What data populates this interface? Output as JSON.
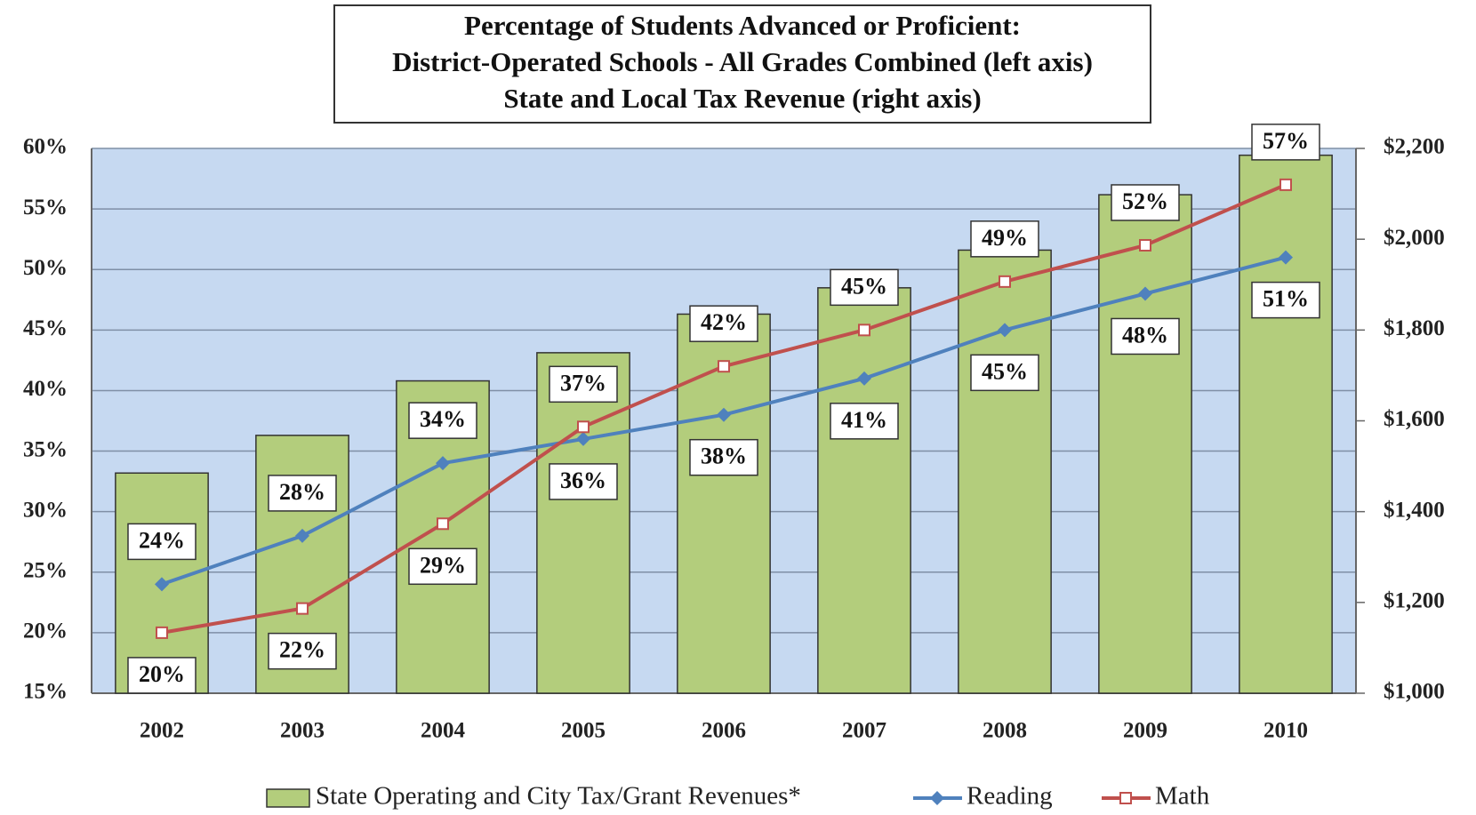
{
  "chart_data": {
    "type": "bar-line",
    "title": [
      "Percentage of Students Advanced or Proficient:",
      "District-Operated Schools - All Grades Combined (left axis)",
      "State and Local Tax Revenue (right axis)"
    ],
    "categories": [
      "2002",
      "2003",
      "2004",
      "2005",
      "2006",
      "2007",
      "2008",
      "2009",
      "2010"
    ],
    "series": [
      {
        "name": "State Operating and City Tax/Grant Revenues*",
        "type": "bar",
        "axis": "y2",
        "color": "#b3cd7c",
        "values": [
          1485,
          1568,
          1688,
          1750,
          1835,
          1893,
          1976,
          2098,
          2185
        ]
      },
      {
        "name": "Reading",
        "type": "line",
        "color": "#4f81bd",
        "values": [
          24,
          28,
          34,
          36,
          38,
          41,
          45,
          48,
          51
        ],
        "value_labels": [
          "24%",
          "28%",
          "34%",
          "36%",
          "38%",
          "41%",
          "45%",
          "48%",
          "51%"
        ]
      },
      {
        "name": "Math",
        "type": "line",
        "color": "#c0504d",
        "values": [
          20,
          22,
          29,
          37,
          42,
          45,
          49,
          52,
          57
        ],
        "value_labels": [
          "20%",
          "22%",
          "29%",
          "37%",
          "42%",
          "45%",
          "49%",
          "52%",
          "57%"
        ]
      }
    ],
    "ylim": [
      15,
      60
    ],
    "yticks": [
      {
        "value": 15,
        "label": "15%"
      },
      {
        "value": 20,
        "label": "20%"
      },
      {
        "value": 25,
        "label": "25%"
      },
      {
        "value": 30,
        "label": "30%"
      },
      {
        "value": 35,
        "label": "35%"
      },
      {
        "value": 40,
        "label": "40%"
      },
      {
        "value": 45,
        "label": "45%"
      },
      {
        "value": 50,
        "label": "50%"
      },
      {
        "value": 55,
        "label": "55%"
      },
      {
        "value": 60,
        "label": "60%"
      }
    ],
    "y2lim": [
      1000,
      2200
    ],
    "y2ticks": [
      {
        "value": 1000,
        "label": "$1,000"
      },
      {
        "value": 1200,
        "label": "$1,200"
      },
      {
        "value": 1400,
        "label": "$1,400"
      },
      {
        "value": 1600,
        "label": "$1,600"
      },
      {
        "value": 1800,
        "label": "$1,800"
      },
      {
        "value": 2000,
        "label": "$2,000"
      },
      {
        "value": 2200,
        "label": "$2,200"
      }
    ],
    "grid": true,
    "background": "#c6d9f1",
    "legend": "bottom"
  }
}
